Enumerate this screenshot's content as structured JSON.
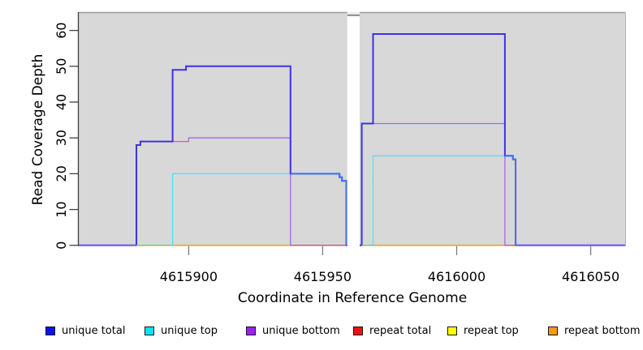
{
  "figure": {
    "bg": "#ffffff",
    "panel_bg": "#d8d8d8"
  },
  "axis": {
    "x_title": "Coordinate in Reference Genome",
    "y_title": "Read Coverage Depth"
  },
  "chart_data": {
    "type": "line",
    "subtype": "step-coverage",
    "xlabel": "Coordinate in Reference Genome",
    "ylabel": "Read Coverage Depth",
    "xlim": [
      4615859,
      4616063
    ],
    "ylim": [
      0,
      65
    ],
    "x_ticks": [
      4615900,
      4615950,
      4616000,
      4616050
    ],
    "y_ticks": [
      0,
      10,
      20,
      30,
      40,
      50,
      60
    ],
    "grid": false,
    "panel_bg": "#d8d8d8",
    "gap": {
      "x_from": 4615959.2,
      "x_to": 4615963.8,
      "meaning": "no-data white column"
    },
    "series": [
      {
        "name": "repeat top",
        "color": "#FFFF00",
        "width": 1.3,
        "points": [
          [
            4615859,
            0
          ],
          [
            4616063,
            0
          ]
        ]
      },
      {
        "name": "repeat total",
        "color": "#EE1111",
        "width": 1.3,
        "points": [
          [
            4615859,
            0
          ],
          [
            4616063,
            0
          ]
        ]
      },
      {
        "name": "repeat bottom",
        "color": "#FFA113",
        "width": 1.6,
        "points": [
          [
            4615859,
            0
          ],
          [
            4616063,
            0
          ]
        ]
      },
      {
        "name": "unique top",
        "color": "#4FE3EA",
        "width": 1.3,
        "points": [
          [
            4615859,
            0
          ],
          [
            4615894,
            0
          ],
          [
            4615894,
            20
          ],
          [
            4615956.3,
            20
          ],
          [
            4615956.3,
            19
          ],
          [
            4615957.2,
            19
          ],
          [
            4615957.2,
            18
          ],
          [
            4615958.8,
            18
          ],
          [
            4615958.8,
            0
          ],
          [
            4615968.8,
            0
          ],
          [
            4615968.8,
            25
          ],
          [
            4616021,
            25
          ],
          [
            4616021,
            24
          ],
          [
            4616022,
            24
          ],
          [
            4616022,
            0
          ],
          [
            4616063,
            0
          ]
        ]
      },
      {
        "name": "unique bottom",
        "color": "#AC63E8",
        "width": 1.3,
        "points": [
          [
            4615859,
            0
          ],
          [
            4615880.5,
            0
          ],
          [
            4615880.5,
            28
          ],
          [
            4615882,
            28
          ],
          [
            4615882,
            29
          ],
          [
            4615900,
            29
          ],
          [
            4615900,
            30
          ],
          [
            4615938,
            30
          ],
          [
            4615938,
            0
          ],
          [
            4615964.6,
            0
          ],
          [
            4615964.6,
            34
          ],
          [
            4616018,
            34
          ],
          [
            4616018,
            0
          ],
          [
            4616063,
            0
          ]
        ]
      },
      {
        "name": "unique total",
        "color": "#3D31E8",
        "width": 2,
        "points": [
          [
            4615859,
            0
          ],
          [
            4615880.5,
            0
          ],
          [
            4615880.5,
            28
          ],
          [
            4615882,
            28
          ],
          [
            4615882,
            29
          ],
          [
            4615894,
            29
          ],
          [
            4615894,
            49
          ],
          [
            4615899,
            49
          ],
          [
            4615899,
            50
          ],
          [
            4615938,
            50
          ],
          [
            4615938,
            20
          ],
          [
            4615956.3,
            20
          ],
          [
            4615956.3,
            19
          ],
          [
            4615957.2,
            19
          ],
          [
            4615957.2,
            18
          ],
          [
            4615958.8,
            18
          ],
          [
            4615958.8,
            0
          ],
          [
            4615964.6,
            0
          ],
          [
            4615964.6,
            34
          ],
          [
            4615968.8,
            34
          ],
          [
            4615968.8,
            59
          ],
          [
            4616018,
            59
          ],
          [
            4616018,
            25
          ],
          [
            4616021,
            25
          ],
          [
            4616021,
            24
          ],
          [
            4616022,
            24
          ],
          [
            4616022,
            0
          ],
          [
            4616063,
            0
          ]
        ]
      }
    ],
    "overlay_segments": [
      {
        "color": "#6F63EE",
        "width": 1.6,
        "points": [
          [
            4615859,
            0
          ],
          [
            4615880.5,
            0
          ]
        ]
      },
      {
        "color": "#79C77F",
        "width": 1.4,
        "points": [
          [
            4615880.5,
            0
          ],
          [
            4615894,
            0
          ]
        ]
      },
      {
        "color": "#D4548C",
        "width": 1.4,
        "points": [
          [
            4615938,
            0
          ],
          [
            4615958.8,
            0
          ]
        ]
      },
      {
        "color": "#79C77F",
        "width": 1.4,
        "points": [
          [
            4615964.6,
            0
          ],
          [
            4615968.8,
            0
          ]
        ]
      },
      {
        "color": "#D4548C",
        "width": 1.4,
        "points": [
          [
            4616018,
            0
          ],
          [
            4616022,
            0
          ]
        ]
      },
      {
        "color": "#6F63EE",
        "width": 1.6,
        "points": [
          [
            4616022,
            0
          ],
          [
            4616063,
            0
          ]
        ]
      },
      {
        "color": "#3E79E6",
        "width": 1.8,
        "points": [
          [
            4615938,
            20
          ],
          [
            4615956.3,
            20
          ],
          [
            4615956.3,
            19
          ],
          [
            4615957.2,
            19
          ],
          [
            4615957.2,
            18
          ],
          [
            4615958.8,
            18
          ],
          [
            4615958.8,
            0
          ]
        ]
      },
      {
        "color": "#3E79E6",
        "width": 1.8,
        "points": [
          [
            4616018,
            25
          ],
          [
            4616021,
            25
          ],
          [
            4616021,
            24
          ],
          [
            4616022,
            24
          ],
          [
            4616022,
            0
          ]
        ]
      }
    ]
  },
  "legend": {
    "items": [
      {
        "label": "unique total",
        "color": "#1010EE"
      },
      {
        "label": "unique top",
        "color": "#00E6F0"
      },
      {
        "label": "unique bottom",
        "color": "#A020F0"
      },
      {
        "label": "repeat total",
        "color": "#EE1111"
      },
      {
        "label": "repeat top",
        "color": "#FFFF00"
      },
      {
        "label": "repeat bottom",
        "color": "#FF9912"
      }
    ]
  }
}
